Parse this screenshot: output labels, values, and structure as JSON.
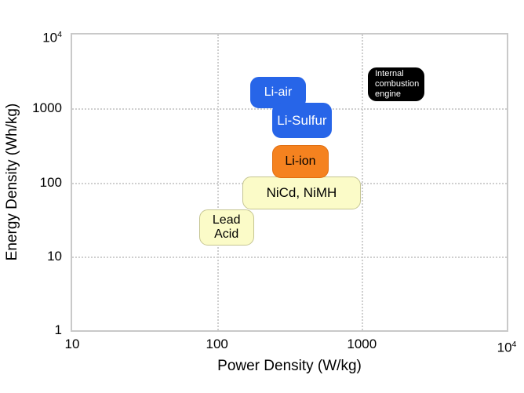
{
  "chart_data": {
    "type": "scatter",
    "variant": "ragone-plot-with-labeled-region-boxes",
    "title": "",
    "xlabel": "Power Density (W/kg)",
    "ylabel": "Energy Density (Wh/kg)",
    "x_scale": "log",
    "y_scale": "log",
    "xlim": [
      10,
      10000
    ],
    "ylim": [
      1,
      10000
    ],
    "grid": "dotted",
    "legend": "none",
    "x_ticks": [
      {
        "value": 10,
        "label": "10"
      },
      {
        "value": 100,
        "label": "100"
      },
      {
        "value": 1000,
        "label": "1000"
      },
      {
        "value": 10000,
        "label": "10^4"
      }
    ],
    "y_ticks": [
      {
        "value": 1,
        "label": "1"
      },
      {
        "value": 10,
        "label": "10"
      },
      {
        "value": 100,
        "label": "100"
      },
      {
        "value": 1000,
        "label": "1000"
      },
      {
        "value": 10000,
        "label": "10^4"
      }
    ],
    "regions": [
      {
        "id": "li-air",
        "label": "Li-air",
        "lines": [
          "Li-air"
        ],
        "power_w_per_kg": [
          170,
          410
        ],
        "energy_wh_per_kg": [
          1000,
          2700
        ],
        "fill": "#2765E8",
        "border": "#2765E8",
        "text_color": "#FFFFFF",
        "font_px": 16,
        "align": "center"
      },
      {
        "id": "li-sulfur",
        "label": "Li-Sulfur",
        "lines": [
          "Li-Sulfur"
        ],
        "power_w_per_kg": [
          240,
          620
        ],
        "energy_wh_per_kg": [
          400,
          1200
        ],
        "fill": "#2765E8",
        "border": "#2765E8",
        "text_color": "#FFFFFF",
        "font_px": 17,
        "align": "center"
      },
      {
        "id": "nicd-nimh",
        "label": "NiCd, NiMH",
        "lines": [
          "NiCd, NiMH"
        ],
        "power_w_per_kg": [
          150,
          980
        ],
        "energy_wh_per_kg": [
          43,
          120
        ],
        "fill": "#FBFBC8",
        "border": "#C5C592",
        "text_color": "#000000",
        "font_px": 17,
        "align": "center"
      },
      {
        "id": "lead-acid",
        "label": "Lead Acid",
        "lines": [
          "Lead",
          "Acid"
        ],
        "power_w_per_kg": [
          75,
          180
        ],
        "energy_wh_per_kg": [
          14,
          43
        ],
        "fill": "#FBFBC8",
        "border": "#C5C592",
        "text_color": "#000000",
        "font_px": 16,
        "align": "center"
      },
      {
        "id": "li-ion",
        "label": "Li-ion",
        "lines": [
          "Li-ion"
        ],
        "power_w_per_kg": [
          240,
          590
        ],
        "energy_wh_per_kg": [
          115,
          320
        ],
        "fill": "#F5821F",
        "border": "#E06E10",
        "text_color": "#000000",
        "font_px": 16,
        "align": "center"
      },
      {
        "id": "internal-combustion-engine",
        "label": "Internal combustion engine",
        "lines": [
          "Internal",
          "combustion",
          "engine"
        ],
        "power_w_per_kg": [
          1100,
          2700
        ],
        "energy_wh_per_kg": [
          1250,
          3600
        ],
        "fill": "#000000",
        "border": "#000000",
        "text_color": "#FFFFFF",
        "font_px": 11,
        "align": "left"
      }
    ],
    "colors": {
      "grid": "#CFCFCF",
      "plot_border": "#C9C9C9",
      "background": "#FFFFFF",
      "text": "#000000"
    }
  }
}
